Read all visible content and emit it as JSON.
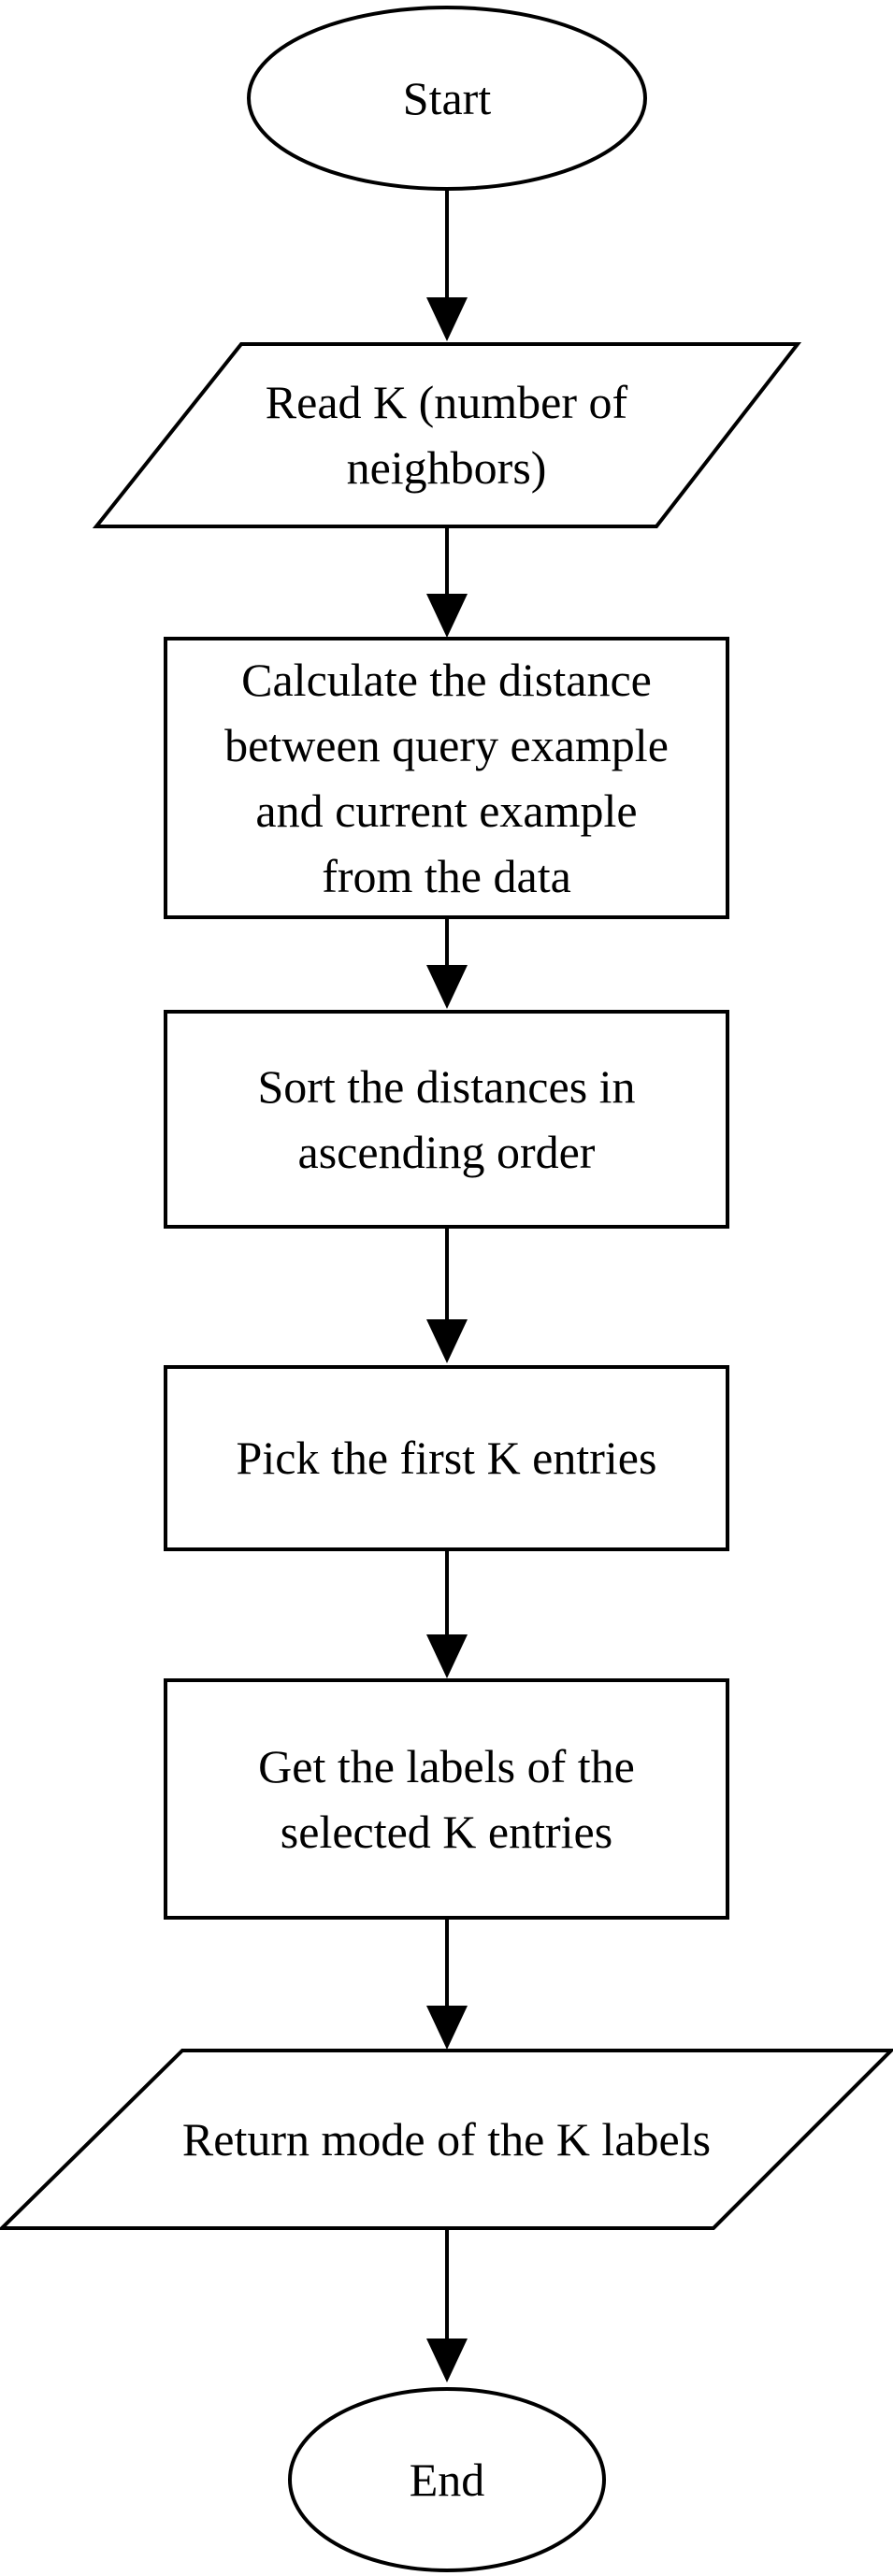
{
  "flowchart": {
    "start": "Start",
    "read_k": {
      "line1": "Read K (number of",
      "line2": "neighbors)"
    },
    "calculate": {
      "line1": "Calculate the distance",
      "line2": "between query example",
      "line3": "and current example",
      "line4": "from the data"
    },
    "sort": {
      "line1": "Sort the distances in",
      "line2": "ascending order"
    },
    "pick": "Pick the first K entries",
    "labels": {
      "line1": "Get the labels of the",
      "line2": "selected K entries"
    },
    "return_mode": "Return mode of the K labels",
    "end": "End"
  },
  "colors": {
    "stroke": "#000000",
    "fill": "#ffffff",
    "text": "#000000"
  }
}
